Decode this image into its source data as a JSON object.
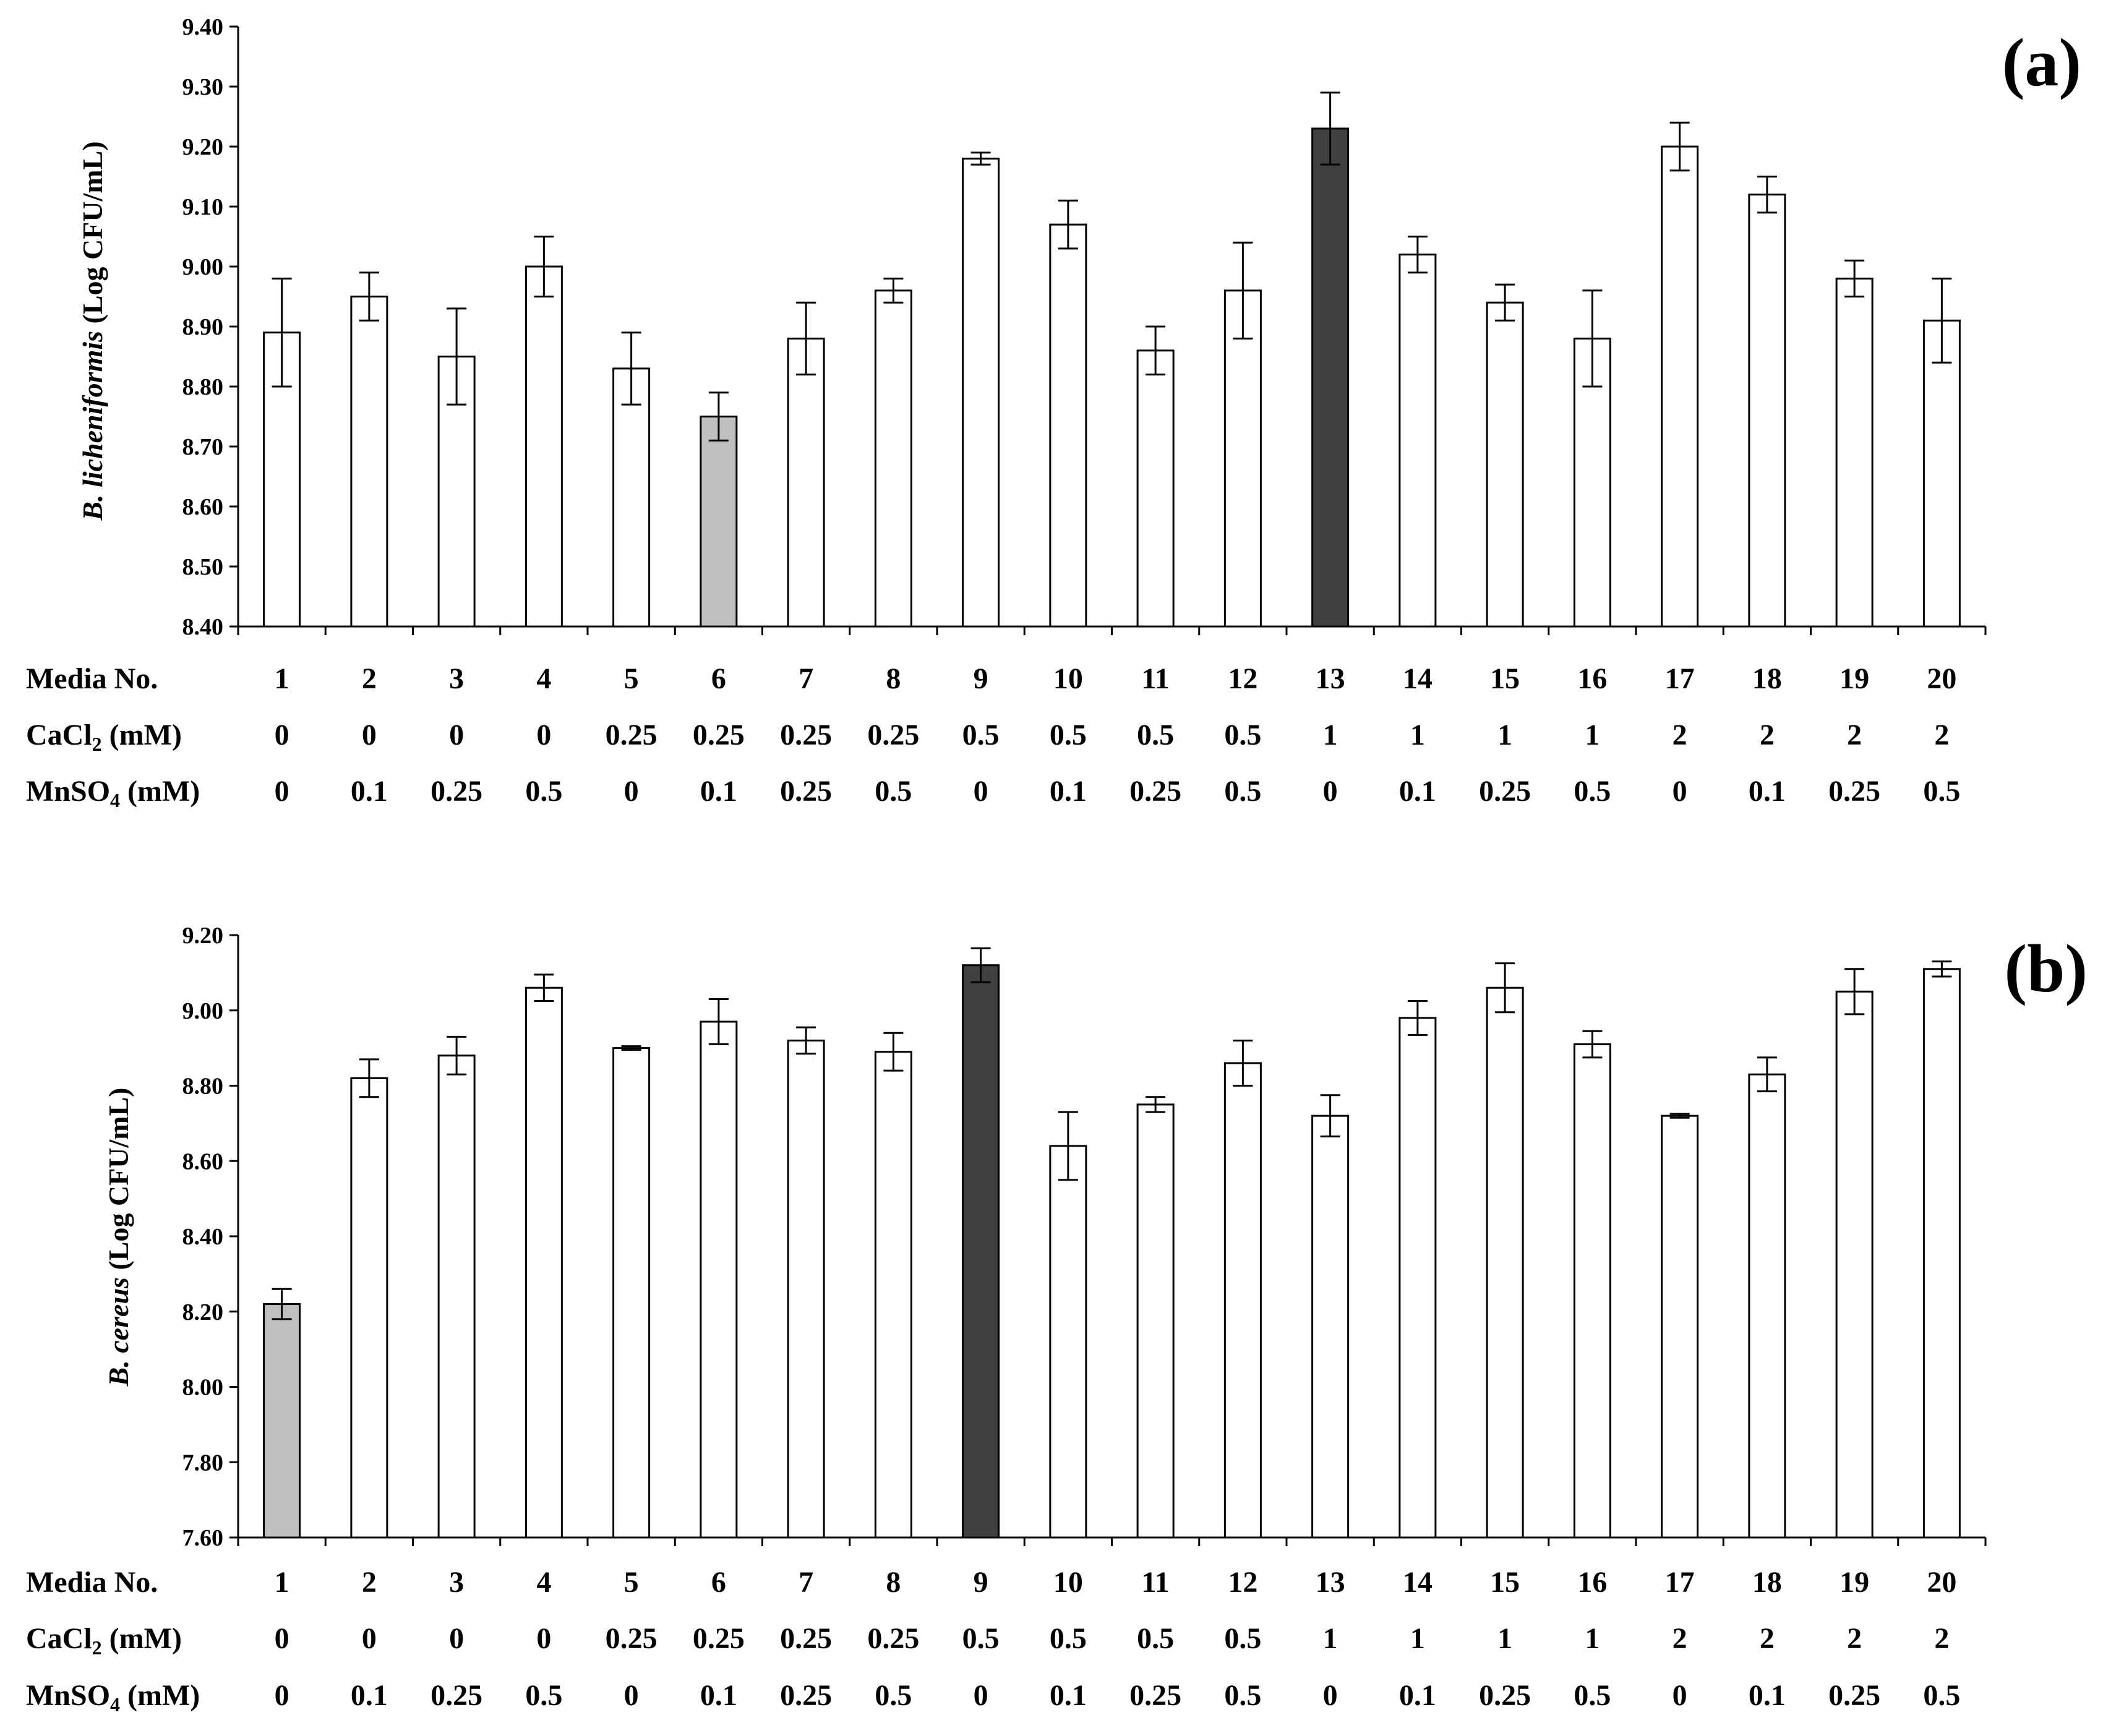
{
  "row_labels": {
    "media": "Media No.",
    "cacl2_main": "CaCl",
    "cacl2_sub": "2",
    "cacl2_unit": " (mM)",
    "mnso4_main": "MnSO",
    "mnso4_sub": "4",
    "mnso4_unit": " (mM)"
  },
  "media_no": [
    "1",
    "2",
    "3",
    "4",
    "5",
    "6",
    "7",
    "8",
    "9",
    "10",
    "11",
    "12",
    "13",
    "14",
    "15",
    "16",
    "17",
    "18",
    "19",
    "20"
  ],
  "cacl2": [
    "0",
    "0",
    "0",
    "0",
    "0.25",
    "0.25",
    "0.25",
    "0.25",
    "0.5",
    "0.5",
    "0.5",
    "0.5",
    "1",
    "1",
    "1",
    "1",
    "2",
    "2",
    "2",
    "2"
  ],
  "mnso4": [
    "0",
    "0.1",
    "0.25",
    "0.5",
    "0",
    "0.1",
    "0.25",
    "0.5",
    "0",
    "0.1",
    "0.25",
    "0.5",
    "0",
    "0.1",
    "0.25",
    "0.5",
    "0",
    "0.1",
    "0.25",
    "0.5"
  ],
  "colors": {
    "default": "#ffffff",
    "lowest": "#bfbfbf",
    "highest": "#404040",
    "stroke": "#000000"
  },
  "chart_data": [
    {
      "type": "bar",
      "panel_label": "(a)",
      "ylabel_italic": "B. licheniformis",
      "ylabel_rest": " (Log CFU/mL)",
      "ylim": [
        8.4,
        9.4
      ],
      "yticks": [
        "8.40",
        "8.50",
        "8.60",
        "8.70",
        "8.80",
        "8.90",
        "9.00",
        "9.10",
        "9.20",
        "9.30",
        "9.40"
      ],
      "categories": [
        "1",
        "2",
        "3",
        "4",
        "5",
        "6",
        "7",
        "8",
        "9",
        "10",
        "11",
        "12",
        "13",
        "14",
        "15",
        "16",
        "17",
        "18",
        "19",
        "20"
      ],
      "values": [
        8.89,
        8.95,
        8.85,
        9.0,
        8.83,
        8.75,
        8.88,
        8.96,
        9.18,
        9.07,
        8.86,
        8.96,
        9.23,
        9.02,
        8.94,
        8.88,
        9.2,
        9.12,
        8.98,
        8.91
      ],
      "errors": [
        0.09,
        0.04,
        0.08,
        0.05,
        0.06,
        0.04,
        0.06,
        0.02,
        0.01,
        0.04,
        0.04,
        0.08,
        0.06,
        0.03,
        0.03,
        0.08,
        0.04,
        0.03,
        0.03,
        0.07
      ],
      "lowest_index": 5,
      "highest_index": 12
    },
    {
      "type": "bar",
      "panel_label": "(b)",
      "ylabel_italic": "B. cereus",
      "ylabel_rest": " (Log CFU/mL)",
      "ylim": [
        7.6,
        9.2
      ],
      "yticks": [
        "7.60",
        "7.80",
        "8.00",
        "8.20",
        "8.40",
        "8.60",
        "8.80",
        "9.00",
        "9.20"
      ],
      "categories": [
        "1",
        "2",
        "3",
        "4",
        "5",
        "6",
        "7",
        "8",
        "9",
        "10",
        "11",
        "12",
        "13",
        "14",
        "15",
        "16",
        "17",
        "18",
        "19",
        "20"
      ],
      "values": [
        8.22,
        8.82,
        8.88,
        9.06,
        8.9,
        8.97,
        8.92,
        8.89,
        9.12,
        8.64,
        8.75,
        8.86,
        8.72,
        8.98,
        9.06,
        8.91,
        8.72,
        8.83,
        9.05,
        9.11
      ],
      "errors": [
        0.04,
        0.05,
        0.05,
        0.035,
        0.005,
        0.06,
        0.035,
        0.05,
        0.045,
        0.09,
        0.02,
        0.06,
        0.055,
        0.045,
        0.065,
        0.035,
        0.005,
        0.045,
        0.06,
        0.02
      ],
      "lowest_index": 0,
      "highest_index": 8
    }
  ]
}
